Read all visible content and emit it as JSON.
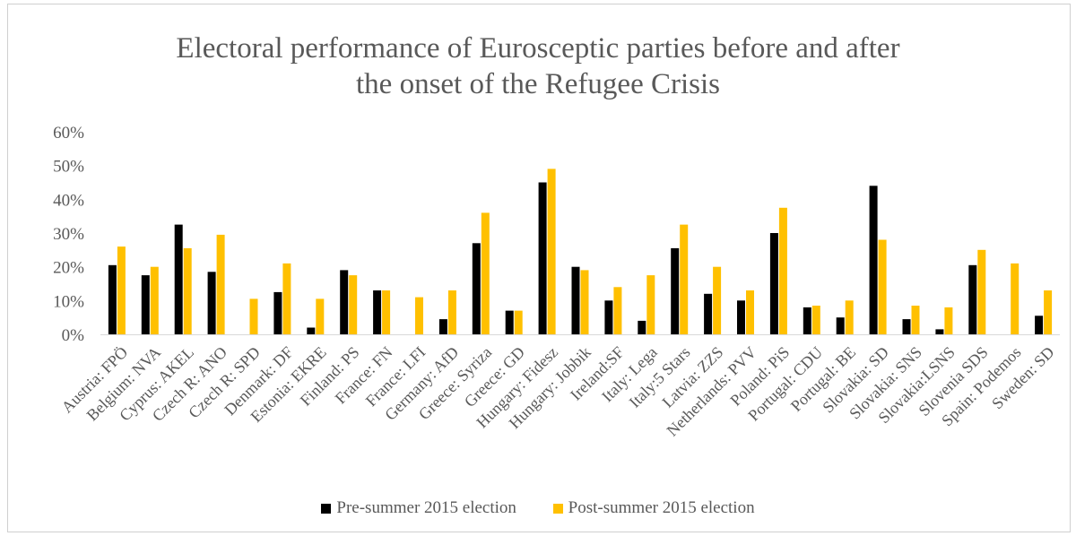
{
  "chart_data": {
    "type": "bar",
    "title_lines": [
      "Electoral performance of Eurosceptic parties before and after",
      "the onset of the Refugee Crisis"
    ],
    "categories": [
      "Austria: FPÖ",
      "Belgium: NVA",
      "Cyprus: AKEL",
      "Czech R: ANO",
      "Czech R: SPD",
      "Denmark: DF",
      "Estonia: EKRE",
      "Finland: PS",
      "France: FN",
      "France: LFI",
      "Germany: AfD",
      "Greece: Syriza",
      "Greece: GD",
      "Hungary: Fidesz",
      "Hungary: Jobbik",
      "Ireland:SF",
      "Italy: Lega",
      "Italy:5 Stars",
      "Latvia: ZZS",
      "Netherlands: PVV",
      "Poland: PiS",
      "Portugal: CDU",
      "Portugal: BE",
      "Slovakia: SD",
      "Slovakia: SNS",
      "Slovakia:LSNS",
      "Slovenia SDS",
      "Spain: Podemos",
      "Sweden: SD"
    ],
    "series": [
      {
        "name": "Pre-summer 2015 election",
        "color": "#000000",
        "values": [
          20.5,
          17.5,
          32.5,
          18.5,
          0,
          12.5,
          2,
          19,
          13,
          0,
          4.5,
          27,
          7,
          45,
          20,
          10,
          4,
          25.5,
          12,
          10,
          30,
          8,
          5,
          44,
          4.5,
          1.5,
          20.5,
          0,
          5.5
        ]
      },
      {
        "name": "Post-summer 2015 election",
        "color": "#ffc000",
        "values": [
          26,
          20,
          25.5,
          29.5,
          10.5,
          21,
          10.5,
          17.5,
          13,
          11,
          13,
          36,
          7,
          49,
          19,
          14,
          17.5,
          32.5,
          20,
          13,
          37.5,
          8.5,
          10,
          28,
          8.5,
          8,
          25,
          21,
          13
        ]
      }
    ],
    "yticks": [
      "0%",
      "10%",
      "20%",
      "30%",
      "40%",
      "50%",
      "60%"
    ],
    "ylim": [
      0,
      60
    ],
    "legend_position": "bottom"
  }
}
